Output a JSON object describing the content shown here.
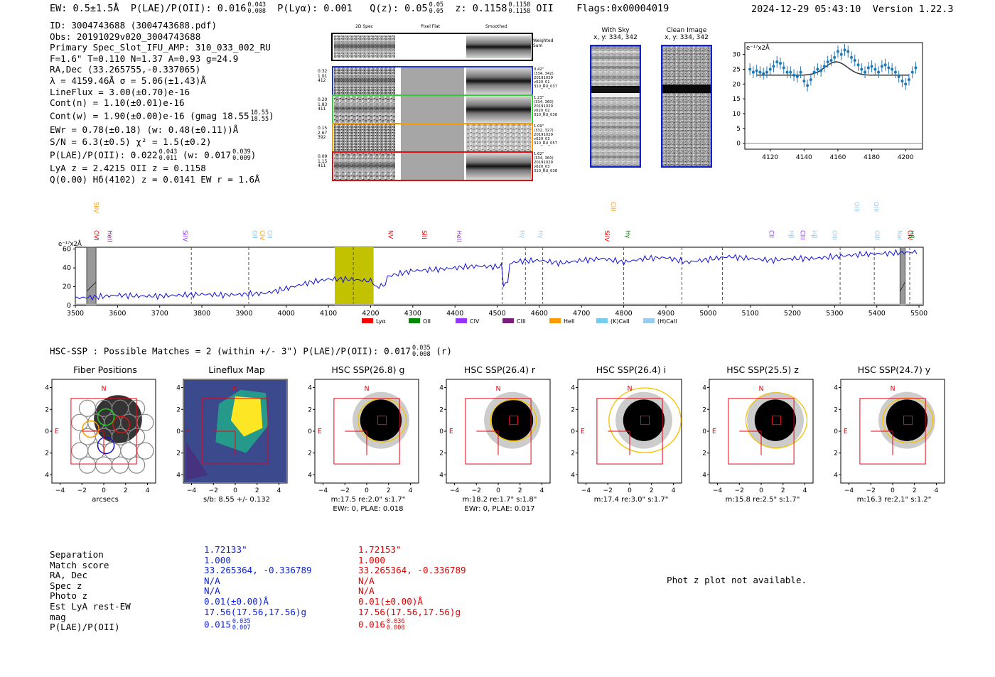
{
  "header": {
    "ew": "EW: 0.5±1.5Å",
    "plae_label": "P(LAE)/P(OII): 0.016",
    "plae_hi": "0.043",
    "plae_lo": "0.008",
    "plya": "P(Lyα): 0.001",
    "qz_label": "Q(z): 0.05",
    "qz_hi": "0.05",
    "qz_lo": "0.05",
    "z_label": "z: 0.1158",
    "z_hi": "0.1158",
    "z_lo": "0.1158",
    "z_line": "OII",
    "flags": "Flags:0x00004019",
    "datetime": "2024-12-29 05:43:10",
    "version": "Version 1.22.3"
  },
  "info": {
    "id": "ID: 3004743688 (3004743688.pdf)",
    "obs": "Obs: 20191029v020_3004743688",
    "primary": "Primary Spec_Slot_IFU_AMP: 310_033_002_RU",
    "fta": "F=1.6\"  T=0.110  N=1.37  A=0.93  g=24.9",
    "radec": "RA,Dec (33.265755,-0.337065)",
    "lambda": "λ = 4159.46Å  σ = 5.06(±1.43)Å",
    "lineflux": "LineFlux = 3.00(±0.70)e-16",
    "contn": "Cont(n) = 1.10(±0.01)e-16",
    "contw": "Cont(w) = 1.90(±0.00)e-16 (gmag 18.55",
    "contw_hi": "18.55",
    "contw_lo": "18.55",
    "contw_close": ")",
    "ewr": "EWr = 0.78(±0.18) (w: 0.48(±0.11))Å",
    "sn": "S/N = 6.3(±0.5)  χ² = 1.5(±0.2)",
    "plae2": "P(LAE)/P(OII): 0.022",
    "plae2_hi": "0.043",
    "plae2_lo": "0.011",
    "plae2_w": "(w: 0.017",
    "plae2_w_hi": "0.039",
    "plae2_w_lo": "0.009",
    "plae2_close": ")",
    "lya": "LyA z = 2.4215  OII z = 0.1158",
    "q": "Q(0.00) Hδ(4102) z = 0.0141  EW r = 1.6Å"
  },
  "spec_panel": {
    "col1": "2D Spec",
    "col2": "Pixel Flat",
    "col3": "Smoothed",
    "weighted": "Weighted Sum",
    "rows": [
      {
        "v1": "0.32",
        "v2": "1.01",
        "v3": "412",
        "meta": [
          "0.42\"",
          "(334, 342)",
          "20191029",
          "v020_01",
          "310_RU_037"
        ],
        "color": "#2233cc"
      },
      {
        "v1": "0.20",
        "v2": "1.83",
        "v3": "411",
        "meta": [
          "1.23\"",
          "(334, 360)",
          "20191029",
          "v020_02",
          "310_RU_038"
        ],
        "color": "#33cc33"
      },
      {
        "v1": "0.15",
        "v2": "2.67",
        "v3": "392",
        "meta": [
          "1.09\"",
          "(332, 327)",
          "20191029",
          "v020_03",
          "310_RU_057"
        ],
        "color": "#ff9900"
      },
      {
        "v1": "0.09",
        "v2": "1.15",
        "v3": "411",
        "meta": [
          "1.62\"",
          "(334, 360)",
          "20191029",
          "v020_03",
          "310_RU_038"
        ],
        "color": "#dd1111"
      }
    ]
  },
  "with_sky": {
    "title": "With Sky",
    "coords": "x, y: 334, 342"
  },
  "clean_image": {
    "title": "Clean Image",
    "coords": "x, y: 334, 342"
  },
  "chart_data": [
    {
      "type": "scatter",
      "name": "line-fit",
      "ylabel": "e⁻¹⁷x2Å",
      "xlim": [
        4105,
        4210
      ],
      "ylim": [
        -2,
        34
      ],
      "xticks": [
        4120,
        4140,
        4160,
        4180,
        4200
      ],
      "yticks": [
        0,
        5,
        10,
        15,
        20,
        25,
        30
      ],
      "x": [
        4108,
        4110,
        4112,
        4114,
        4116,
        4118,
        4120,
        4122,
        4124,
        4126,
        4128,
        4130,
        4132,
        4134,
        4136,
        4138,
        4140,
        4142,
        4144,
        4146,
        4148,
        4150,
        4152,
        4154,
        4156,
        4158,
        4160,
        4162,
        4164,
        4166,
        4168,
        4170,
        4172,
        4174,
        4176,
        4178,
        4180,
        4182,
        4184,
        4186,
        4188,
        4190,
        4192,
        4194,
        4196,
        4198,
        4200,
        4202,
        4204,
        4206
      ],
      "y": [
        25,
        24,
        24.5,
        24,
        23.5,
        24,
        25,
        26,
        27.5,
        27,
        25.5,
        24,
        24,
        23,
        22.5,
        24,
        21,
        19.5,
        21.5,
        24,
        25,
        24.5,
        26,
        27.5,
        28,
        29,
        31,
        30,
        31.5,
        31,
        29,
        28,
        26.5,
        25,
        24,
        25.5,
        26,
        25,
        24,
        26,
        26.5,
        25.5,
        25,
        24,
        22.5,
        21,
        20,
        21.5,
        24,
        25.5
      ],
      "fit": "gaussian peak ~27 at 4159, baseline ~23"
    },
    {
      "type": "line",
      "name": "full-spectrum",
      "ylabel": "e⁻¹⁷x2Å",
      "xlim": [
        3500,
        5510
      ],
      "ylim": [
        0,
        62
      ],
      "xticks": [
        3500,
        3600,
        3700,
        3800,
        3900,
        4000,
        4100,
        4200,
        4300,
        4400,
        4500,
        4600,
        4700,
        4800,
        4900,
        5000,
        5100,
        5200,
        5300,
        5400,
        5500
      ],
      "yticks": [
        0,
        20,
        40,
        60
      ],
      "highlight_range": [
        4115,
        4207
      ],
      "masked_ranges": [
        [
          3527,
          3549
        ],
        [
          5455,
          5467
        ]
      ],
      "dashed_lines": [
        3775,
        3911,
        4159,
        4512,
        4567,
        4608,
        4800,
        4938,
        5034,
        5313,
        5394,
        5478
      ],
      "x": [
        3500,
        3550,
        3600,
        3650,
        3700,
        3750,
        3800,
        3850,
        3900,
        3950,
        4000,
        4050,
        4100,
        4150,
        4200,
        4250,
        4300,
        4350,
        4400,
        4450,
        4500,
        4550,
        4600,
        4650,
        4700,
        4750,
        4800,
        4850,
        4900,
        4950,
        5000,
        5050,
        5100,
        5150,
        5200,
        5250,
        5300,
        5350,
        5400,
        5450,
        5500
      ],
      "y": [
        8,
        9,
        11,
        10,
        10,
        11,
        12,
        11,
        12,
        13,
        18,
        24,
        28,
        28,
        26,
        32,
        37,
        38,
        40,
        42,
        41,
        47,
        48,
        45,
        48,
        50,
        46,
        50,
        51,
        46,
        49,
        52,
        50,
        48,
        50,
        50,
        52,
        54,
        55,
        56,
        57
      ],
      "legend": [
        "Lyα",
        "OII",
        "CIV",
        "CIII",
        "HeII",
        "(K)CaII",
        "(H)CaII"
      ],
      "legend_colors": [
        "#ff0000",
        "#008800",
        "#9933ff",
        "#7a1f7a",
        "#ff9900",
        "#77ccee",
        "#99ccee"
      ],
      "line_labels": [
        {
          "name": "SiIV",
          "x": 3540,
          "color": "#ff9900",
          "row": "top"
        },
        {
          "name": "OVI",
          "x": 3540,
          "color": "#ff0000",
          "row": "mid"
        },
        {
          "name": "HeII",
          "x": 3572,
          "color": "#7a1f7a",
          "row": "mid"
        },
        {
          "name": "SiIV",
          "x": 3750,
          "color": "#9933ff",
          "row": "mid"
        },
        {
          "name": "OII",
          "x": 3915,
          "color": "#77ccee",
          "row": "mid"
        },
        {
          "name": "CIV",
          "x": 3933,
          "color": "#ff9900",
          "row": "mid"
        },
        {
          "name": "OII",
          "x": 3951,
          "color": "#99ccee",
          "row": "mid"
        },
        {
          "name": "NV",
          "x": 4237,
          "color": "#ff0000",
          "row": "mid"
        },
        {
          "name": "SiII",
          "x": 4317,
          "color": "#ff0000",
          "row": "mid"
        },
        {
          "name": "HeII",
          "x": 4400,
          "color": "#9933ff",
          "row": "mid"
        },
        {
          "name": "Hγ",
          "x": 4550,
          "color": "#99ccee",
          "row": "mid"
        },
        {
          "name": "Hγ",
          "x": 4593,
          "color": "#99ccee",
          "row": "mid"
        },
        {
          "name": "CIII",
          "x": 4765,
          "color": "#ff9900",
          "row": "top"
        },
        {
          "name": "SiIV",
          "x": 4750,
          "color": "#ff0000",
          "row": "mid"
        },
        {
          "name": "Hγ",
          "x": 4800,
          "color": "#008800",
          "row": "mid"
        },
        {
          "name": "CII",
          "x": 5140,
          "color": "#9933ff",
          "row": "mid"
        },
        {
          "name": "Hβ",
          "x": 5187,
          "color": "#99ccee",
          "row": "mid"
        },
        {
          "name": "CIII",
          "x": 5214,
          "color": "#9933ff",
          "row": "mid"
        },
        {
          "name": "Hβ",
          "x": 5242,
          "color": "#99ccee",
          "row": "mid"
        },
        {
          "name": "OIII",
          "x": 5290,
          "color": "#99ccee",
          "row": "mid"
        },
        {
          "name": "OIII",
          "x": 5342,
          "color": "#99ccee",
          "row": "top"
        },
        {
          "name": "OIII",
          "x": 5389,
          "color": "#99ccee",
          "row": "top"
        },
        {
          "name": "OIII",
          "x": 5390,
          "color": "#99ccee",
          "row": "mid"
        },
        {
          "name": "CIV",
          "x": 5469,
          "color": "#ff0000",
          "row": "mid"
        },
        {
          "name": "NaI",
          "x": 5444,
          "color": "#99ccee",
          "row": "mid"
        },
        {
          "name": "Hβ",
          "x": 5472,
          "color": "#008800",
          "row": "mid"
        }
      ]
    }
  ],
  "hsc": {
    "summary": "HSC-SSP : Possible Matches = 2 (within +/- 3\")  P(LAE)/P(OII): 0.017",
    "summary_hi": "0.035",
    "summary_lo": "0.008",
    "summary_band": "(r)",
    "panels": [
      {
        "title": "Fiber Positions",
        "caption1": "arcsecs",
        "caption2": ""
      },
      {
        "title": "Lineflux Map",
        "caption1": "s/b: 8.55 +/- 0.132",
        "caption2": ""
      },
      {
        "title": "HSC SSP(26.8) g",
        "caption1": "m:17.5  re:2.0\"  s:1.7\"",
        "caption2": "EWr: 0, PLAE: 0.018"
      },
      {
        "title": "HSC SSP(26.4) r",
        "caption1": "m:18.2  re:1.7\"  s:1.8\"",
        "caption2": "EWr: 0, PLAE: 0.017"
      },
      {
        "title": "HSC SSP(26.4) i",
        "caption1": "m:17.4  re:3.0\"  s:1.7\"",
        "caption2": ""
      },
      {
        "title": "HSC SSP(25.5) z",
        "caption1": "m:15.8  re:2.5\"  s:1.7\"",
        "caption2": ""
      },
      {
        "title": "HSC SSP(24.7) y",
        "caption1": "m:16.3  re:2.1\"  s:1.2\"",
        "caption2": ""
      }
    ],
    "ticks": [
      "−4",
      "−2",
      "0",
      "2",
      "4"
    ],
    "north": "N",
    "east": "E"
  },
  "matches": {
    "labels": [
      "Separation",
      "Match score",
      "RA, Dec",
      "Spec z",
      "Photo z",
      "Est LyA rest-EW",
      "mag",
      "P(LAE)/P(OII)"
    ],
    "col1": [
      "1.72133\"",
      "1.000",
      "33.265364, -0.336789",
      "N/A",
      "N/A",
      "0.01(±0.00)Å",
      "17.56(17.56,17.56)g",
      "0.015"
    ],
    "col1_plae_hi": "0.035",
    "col1_plae_lo": "0.007",
    "col2": [
      "1.72153\"",
      "1.000",
      "33.265364, -0.336789",
      "N/A",
      "N/A",
      "0.01(±0.00)Å",
      "17.56(17.56,17.56)g",
      "0.016"
    ],
    "col2_plae_hi": "0.036",
    "col2_plae_lo": "0.008",
    "photz_msg": "Phot z plot not available."
  }
}
